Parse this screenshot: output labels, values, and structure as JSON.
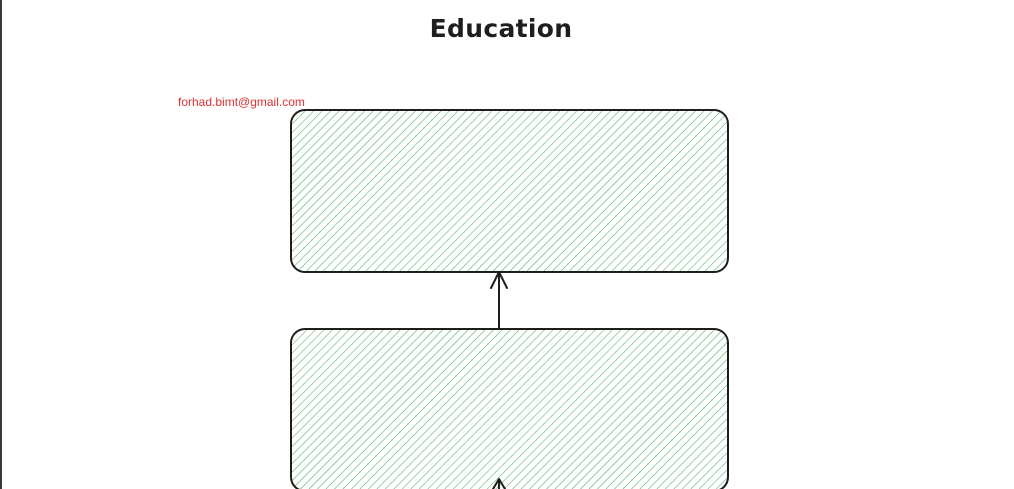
{
  "title": "Education",
  "email": "forhad.bimt@gmail.com",
  "colors": {
    "hatch": "#2f9e44",
    "stroke": "#1e1e1e",
    "email": "#e03131"
  }
}
